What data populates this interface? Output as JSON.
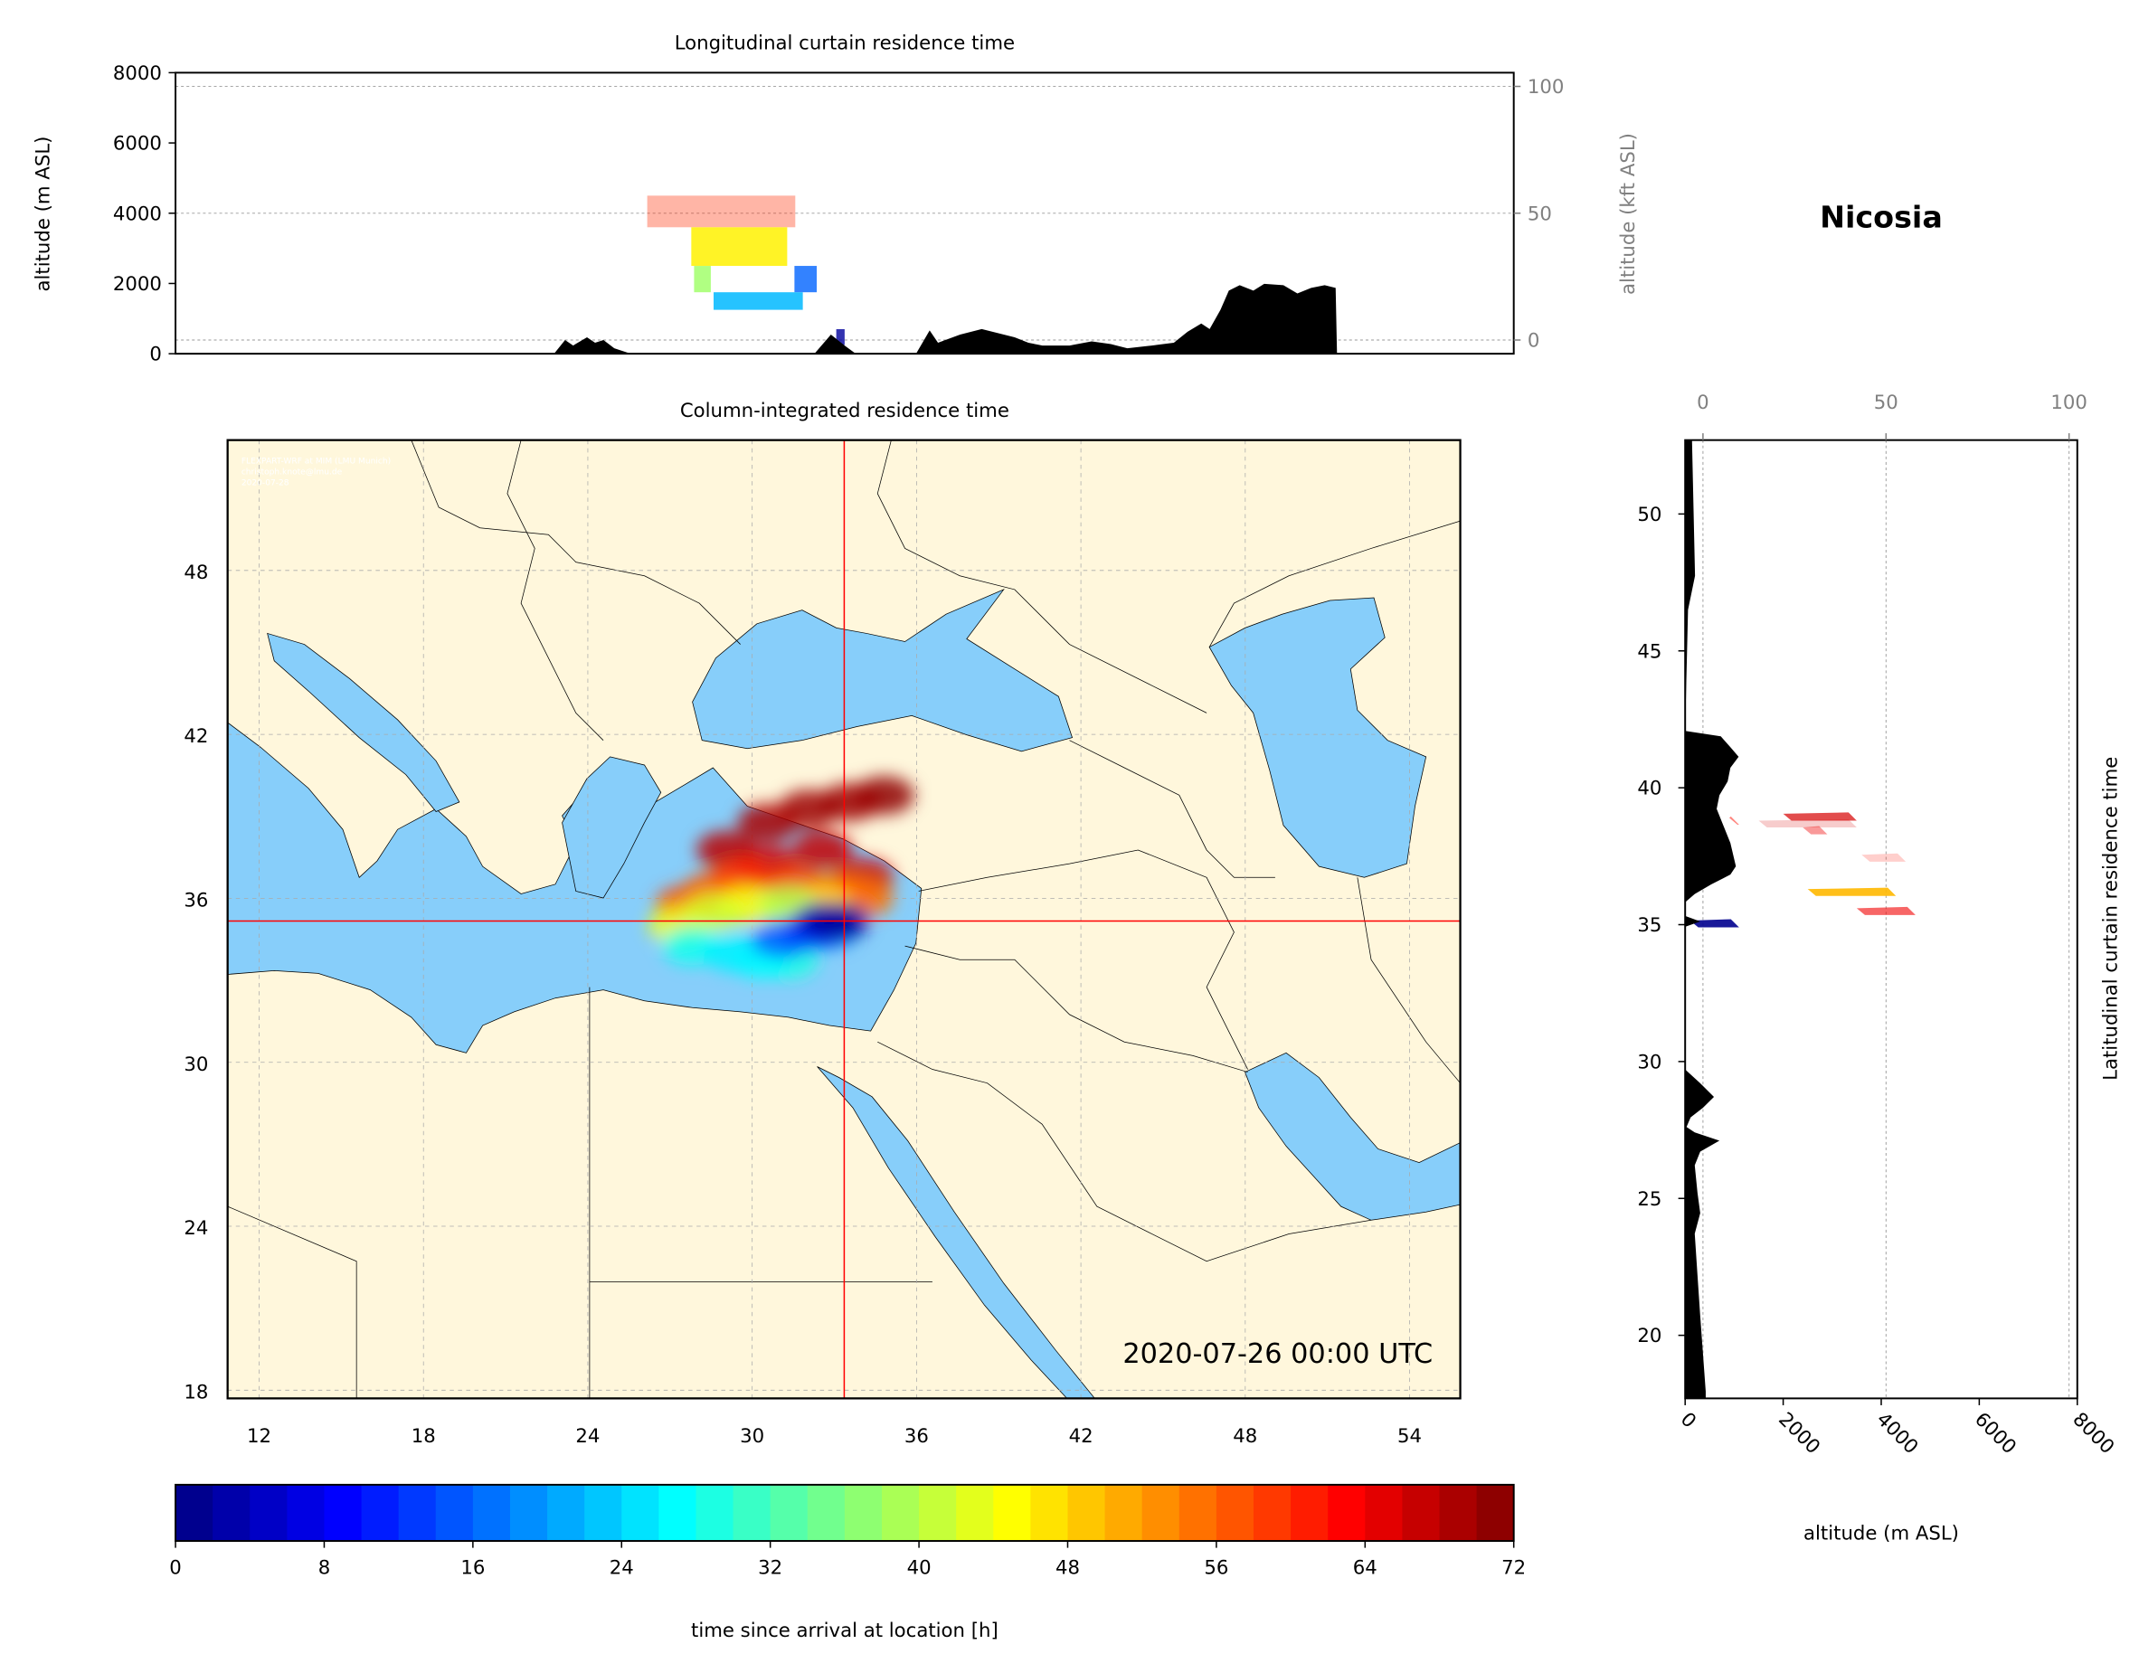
{
  "station": "Nicosia",
  "chart_data": [
    {
      "id": "longitudinal",
      "type": "area",
      "title": "Longitudinal curtain residence time",
      "ylabel": "altitude (m ASL)",
      "y2label": "altitude (kft ASL)",
      "xlim": [
        9.1,
        57.1
      ],
      "ylim": [
        0,
        8000
      ],
      "yticks": [
        0,
        2000,
        4000,
        6000,
        8000
      ],
      "y2ticks": [
        0,
        50,
        100
      ],
      "grid": true,
      "terrain": [
        [
          22.68,
          0
        ],
        [
          23.07,
          390
        ],
        [
          23.36,
          234
        ],
        [
          23.86,
          468
        ],
        [
          24.15,
          312
        ],
        [
          24.45,
          390
        ],
        [
          24.84,
          156
        ],
        [
          25.43,
          0
        ],
        [
          32.02,
          0
        ],
        [
          32.61,
          546
        ],
        [
          33.1,
          234
        ],
        [
          33.5,
          0
        ],
        [
          35.66,
          0
        ],
        [
          36.15,
          663
        ],
        [
          36.45,
          312
        ],
        [
          37.24,
          546
        ],
        [
          38.02,
          702
        ],
        [
          38.81,
          546
        ],
        [
          39.2,
          468
        ],
        [
          39.69,
          312
        ],
        [
          40.19,
          234
        ],
        [
          41.17,
          234
        ],
        [
          41.96,
          351
        ],
        [
          42.65,
          273
        ],
        [
          43.24,
          156
        ],
        [
          44.12,
          234
        ],
        [
          44.91,
          312
        ],
        [
          45.4,
          624
        ],
        [
          45.89,
          858
        ],
        [
          46.19,
          702
        ],
        [
          46.58,
          1248
        ],
        [
          46.88,
          1794
        ],
        [
          47.27,
          1950
        ],
        [
          47.76,
          1794
        ],
        [
          48.15,
          1989
        ],
        [
          48.84,
          1950
        ],
        [
          49.34,
          1716
        ],
        [
          49.83,
          1872
        ],
        [
          50.32,
          1950
        ],
        [
          50.71,
          1872
        ],
        [
          50.76,
          0
        ]
      ],
      "plume": [
        {
          "lon": [
            26.02,
            31.33
          ],
          "alt": [
            3600,
            4500
          ],
          "hours": 60,
          "opacity": 0.35
        },
        {
          "lon": [
            27.6,
            31.04
          ],
          "alt": [
            2500,
            3600
          ],
          "hours": 46,
          "opacity": 0.85
        },
        {
          "lon": [
            27.7,
            28.3
          ],
          "alt": [
            1750,
            2500
          ],
          "hours": 38,
          "opacity": 0.8
        },
        {
          "lon": [
            31.3,
            32.1
          ],
          "alt": [
            1750,
            2500
          ],
          "hours": 16,
          "opacity": 0.8
        },
        {
          "lon": [
            28.4,
            31.6
          ],
          "alt": [
            1250,
            1750
          ],
          "hours": 22,
          "opacity": 0.85
        },
        {
          "lon": [
            32.8,
            33.1
          ],
          "alt": [
            250,
            700
          ],
          "hours": 2,
          "opacity": 0.8
        }
      ]
    },
    {
      "id": "map",
      "type": "heatmap",
      "title": "Column-integrated residence time",
      "xticks": [
        12,
        18,
        24,
        30,
        36,
        42,
        48,
        54
      ],
      "yticks": [
        18,
        24,
        30,
        36,
        42,
        48
      ],
      "xlim": [
        10.85,
        55.85
      ],
      "ylim": [
        17.7,
        52.77
      ],
      "grid": true,
      "location": {
        "lon": 33.36,
        "lat": 35.17
      },
      "timestamp": "2020-07-26 00:00 UTC",
      "attribution": [
        "FLEXPART-WRF at MIM (LMU Munich)",
        "christoph.knote@lmu.de",
        "2020-07-28"
      ],
      "colors": {
        "land": "#fff7dc",
        "water": "#87cefa",
        "crosshair": "#ff0000"
      },
      "plume_cells": [
        [
          29.07,
          37.77,
          68
        ],
        [
          30.57,
          38.77,
          69
        ],
        [
          32.07,
          39.27,
          70
        ],
        [
          33.57,
          39.52,
          70
        ],
        [
          34.82,
          39.77,
          71
        ],
        [
          30.57,
          37.27,
          66
        ],
        [
          32.57,
          37.77,
          67
        ],
        [
          34.07,
          36.76,
          66
        ],
        [
          27.57,
          35.76,
          58
        ],
        [
          28.57,
          36.26,
          57
        ],
        [
          29.57,
          36.76,
          60
        ],
        [
          31.57,
          36.51,
          59
        ],
        [
          33.07,
          36.26,
          56
        ],
        [
          34.07,
          36.01,
          55
        ],
        [
          27.32,
          35.01,
          44
        ],
        [
          28.57,
          35.51,
          42
        ],
        [
          29.82,
          35.76,
          45
        ],
        [
          31.32,
          35.76,
          40
        ],
        [
          32.57,
          35.76,
          47
        ],
        [
          27.82,
          34.25,
          28
        ],
        [
          29.32,
          34.0,
          26
        ],
        [
          30.32,
          33.75,
          27
        ],
        [
          31.32,
          33.75,
          29
        ],
        [
          31.07,
          34.5,
          16
        ],
        [
          32.07,
          34.75,
          14
        ],
        [
          32.82,
          34.86,
          18
        ],
        [
          32.57,
          35.16,
          5
        ],
        [
          33.17,
          35.16,
          2
        ]
      ]
    },
    {
      "id": "latitudinal",
      "type": "area",
      "title": "Latitudinal curtain residence time",
      "xlabel": "altitude (m ASL)",
      "xlim": [
        0,
        8000
      ],
      "ylim": [
        17.7,
        52.7
      ],
      "xticks": [
        0,
        2000,
        4000,
        6000,
        8000
      ],
      "x2ticks": [
        0,
        50,
        100
      ],
      "yticks": [
        20,
        25,
        30,
        35,
        40,
        45,
        50
      ],
      "grid": true,
      "terrain": [
        [
          52.7,
          140
        ],
        [
          47.74,
          200
        ],
        [
          46.5,
          60
        ],
        [
          42.08,
          0
        ],
        [
          41.88,
          728
        ],
        [
          41.48,
          924
        ],
        [
          41.13,
          1092
        ],
        [
          40.73,
          924
        ],
        [
          40.23,
          868
        ],
        [
          39.73,
          700
        ],
        [
          39.23,
          644
        ],
        [
          38.73,
          756
        ],
        [
          37.98,
          924
        ],
        [
          37.13,
          1036
        ],
        [
          36.83,
          924
        ],
        [
          36.47,
          532
        ],
        [
          36.12,
          196
        ],
        [
          35.82,
          0
        ],
        [
          35.32,
          0
        ],
        [
          35.12,
          308
        ],
        [
          34.92,
          0
        ],
        [
          29.71,
          0
        ],
        [
          29.21,
          308
        ],
        [
          28.71,
          588
        ],
        [
          28.31,
          364
        ],
        [
          27.96,
          112
        ],
        [
          27.61,
          28
        ],
        [
          27.41,
          196
        ],
        [
          27.11,
          700
        ],
        [
          26.71,
          308
        ],
        [
          26.21,
          196
        ],
        [
          25.21,
          252
        ],
        [
          24.46,
          308
        ],
        [
          23.71,
          196
        ],
        [
          22.2,
          252
        ],
        [
          20.7,
          308
        ],
        [
          17.95,
          420
        ],
        [
          17.7,
          420
        ]
      ],
      "plume": [
        {
          "lat": 38.95,
          "alt": [
            2000,
            3500
          ],
          "hours": 66,
          "opacity": 0.7
        },
        {
          "lat": 38.7,
          "alt": [
            1500,
            3500
          ],
          "hours": 66,
          "opacity": 0.2
        },
        {
          "lat": 38.45,
          "alt": [
            2400,
            2900
          ],
          "hours": 64,
          "opacity": 0.4
        },
        {
          "lat": 38.8,
          "alt": [
            900,
            1100
          ],
          "hours": 62,
          "opacity": 0.5
        },
        {
          "lat": 37.45,
          "alt": [
            3600,
            4500
          ],
          "hours": 62,
          "opacity": 0.2
        },
        {
          "lat": 36.2,
          "alt": [
            2500,
            4300
          ],
          "hours": 50,
          "opacity": 0.9
        },
        {
          "lat": 35.5,
          "alt": [
            3500,
            4700
          ],
          "hours": 64,
          "opacity": 0.6
        },
        {
          "lat": 35.05,
          "alt": [
            100,
            1100
          ],
          "hours": 1,
          "opacity": 0.9
        }
      ]
    },
    {
      "id": "colorbar",
      "type": "colorbar",
      "label": "time since arrival at location [h]",
      "range": [
        0,
        72
      ],
      "ticks": [
        0,
        8,
        16,
        24,
        32,
        40,
        48,
        56,
        64,
        72
      ],
      "colormap": "jet"
    }
  ]
}
